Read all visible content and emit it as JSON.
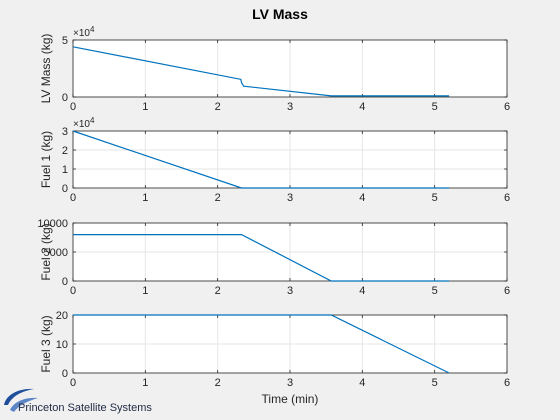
{
  "figure": {
    "title": "LV Mass",
    "xlabel": "Time (min)",
    "logo_text": "Princeton Satellite Systems"
  },
  "colors": {
    "background": "#f0f0f0",
    "axes_bg": "#ffffff",
    "line": "#0072bd",
    "grid": "#e6e6e6",
    "axis": "#262626",
    "logo_swoosh": "#1f4e9a"
  },
  "chart_data": [
    {
      "type": "line",
      "ylabel": "LV Mass (kg)",
      "xlim": [
        0,
        6
      ],
      "ylim": [
        0,
        50000
      ],
      "xticks": [
        "0",
        "1",
        "2",
        "3",
        "4",
        "5",
        "6"
      ],
      "yticks": [
        "0",
        "5"
      ],
      "exponent": "×10",
      "exponent_power": "4",
      "grid": true,
      "series": [
        {
          "x": [
            0,
            2.32,
            2.33,
            2.36,
            3.57,
            5.2
          ],
          "y": [
            44000,
            15500,
            12500,
            9500,
            1000,
            1000
          ]
        }
      ]
    },
    {
      "type": "line",
      "ylabel": "Fuel 1 (kg)",
      "xlim": [
        0,
        6
      ],
      "ylim": [
        0,
        30000
      ],
      "xticks": [
        "0",
        "1",
        "2",
        "3",
        "4",
        "5",
        "6"
      ],
      "yticks": [
        "0",
        "1",
        "2",
        "3"
      ],
      "exponent": "×10",
      "exponent_power": "4",
      "grid": true,
      "series": [
        {
          "x": [
            0,
            2.33,
            5.2
          ],
          "y": [
            30000,
            0,
            0
          ]
        }
      ]
    },
    {
      "type": "line",
      "ylabel": "Fuel 2 (kg)",
      "xlim": [
        0,
        6
      ],
      "ylim": [
        0,
        10000
      ],
      "xticks": [
        "0",
        "1",
        "2",
        "3",
        "4",
        "5",
        "6"
      ],
      "yticks": [
        "0",
        "5000",
        "10000"
      ],
      "exponent": "",
      "exponent_power": "",
      "grid": true,
      "series": [
        {
          "x": [
            0,
            2.33,
            3.57,
            5.2
          ],
          "y": [
            8000,
            8000,
            0,
            0
          ]
        }
      ]
    },
    {
      "type": "line",
      "ylabel": "Fuel 3 (kg)",
      "xlim": [
        0,
        6
      ],
      "ylim": [
        0,
        20
      ],
      "xticks": [
        "0",
        "1",
        "2",
        "3",
        "4",
        "5",
        "6"
      ],
      "yticks": [
        "0",
        "10",
        "20"
      ],
      "exponent": "",
      "exponent_power": "",
      "grid": true,
      "series": [
        {
          "x": [
            0,
            3.57,
            5.2
          ],
          "y": [
            20,
            20,
            0
          ]
        }
      ]
    }
  ]
}
